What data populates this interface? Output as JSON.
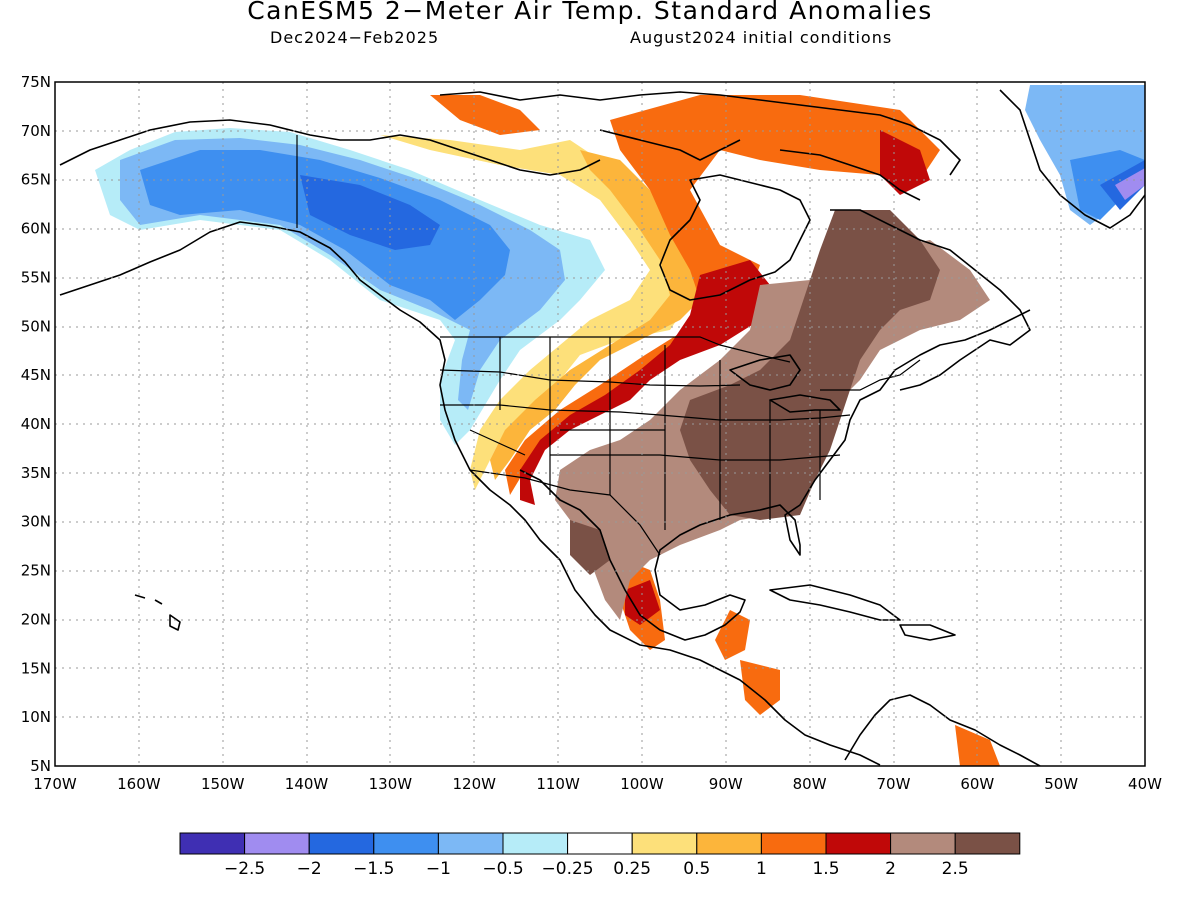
{
  "title": "CanESM5 2−Meter Air Temp. Standard Anomalies",
  "subtitle_left": "Dec2024−Feb2025",
  "subtitle_right": "August2024 initial conditions",
  "map": {
    "lon_range": [
      -170,
      -40
    ],
    "lat_range": [
      5,
      75
    ],
    "grid": true,
    "lon_labels": [
      "170W",
      "160W",
      "150W",
      "140W",
      "130W",
      "120W",
      "110W",
      "100W",
      "90W",
      "80W",
      "70W",
      "60W",
      "50W",
      "40W"
    ],
    "lat_labels": [
      "75N",
      "70N",
      "65N",
      "60N",
      "55N",
      "50N",
      "45N",
      "40N",
      "35N",
      "30N",
      "25N",
      "20N",
      "15N",
      "10N",
      "5N"
    ]
  },
  "colorbar": {
    "colors": [
      "#3f2fb3",
      "#a08cf0",
      "#2468e0",
      "#3e8ff0",
      "#7cb8f5",
      "#b6ecf8",
      "#ffffff",
      "#fde07a",
      "#fcb53b",
      "#f86b0f",
      "#c00808",
      "#b38a7c",
      "#7a5146"
    ],
    "labels": [
      "−2.5",
      "−2",
      "−1.5",
      "−1",
      "−0.5",
      "−0.25",
      "0.25",
      "0.5",
      "1",
      "1.5",
      "2",
      "2.5"
    ]
  }
}
